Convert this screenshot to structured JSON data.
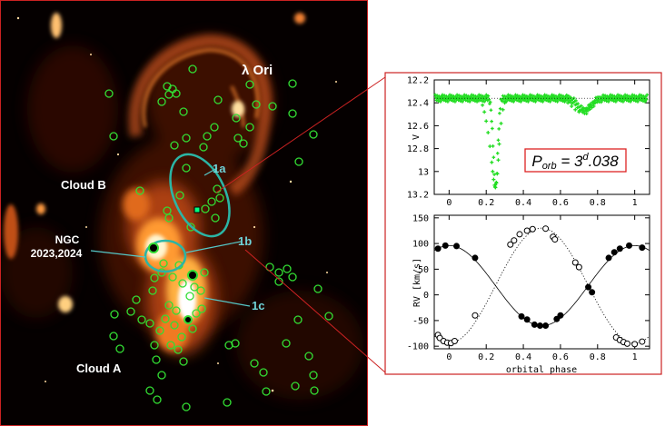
{
  "sky_labels": {
    "lambda_ori": "λ Ori",
    "cloud_b": "Cloud B",
    "cloud_a": "Cloud A",
    "ngc_line1": "NGC",
    "ngc_line2": "2023,2024",
    "sub_1a": "1a",
    "sub_1b": "1b",
    "sub_1c": "1c"
  },
  "colors": {
    "sky_bg": "#000000",
    "nebula": "#e87820",
    "star_marker": "#33dd33",
    "region_outline": "#2bb5a5",
    "label_teal": "#6fd3d8",
    "label_white": "#ffffff",
    "connector_red": "#cc2222",
    "lc_points": "#22dd22",
    "orbit_box": "#dd2222"
  },
  "orbit_annotation": "P_orb = 3^d.038",
  "chart_data": [
    {
      "type": "scatter",
      "ylabel": "V",
      "xlabel": "",
      "xlim": [
        -0.08,
        1.08
      ],
      "ylim": [
        13.2,
        12.2
      ],
      "xticks": [
        0,
        0.2,
        0.4,
        0.6,
        0.8,
        1
      ],
      "xtick_labels": [
        "0",
        "0.2",
        "0.4",
        "0.6",
        "0.8",
        "1"
      ],
      "yticks": [
        12.2,
        12.4,
        12.6,
        12.8,
        13,
        13.2
      ],
      "ytick_labels": [
        "12.2",
        "12.4",
        "12.6",
        "12.8",
        "13",
        "13.2"
      ],
      "annotation": "P_orb = 3^d.038",
      "series": [
        {
          "marker": "plus",
          "color": "#22dd22",
          "x": [
            -0.06,
            -0.04,
            -0.02,
            0.0,
            0.02,
            0.04,
            0.06,
            0.08,
            0.1,
            0.12,
            0.14,
            0.16,
            0.18,
            0.19,
            0.2,
            0.21,
            0.22,
            0.23,
            0.235,
            0.24,
            0.245,
            0.25,
            0.255,
            0.26,
            0.265,
            0.27,
            0.28,
            0.29,
            0.3,
            0.32,
            0.34,
            0.36,
            0.38,
            0.4,
            0.42,
            0.44,
            0.46,
            0.48,
            0.5,
            0.52,
            0.54,
            0.56,
            0.58,
            0.6,
            0.62,
            0.64,
            0.66,
            0.68,
            0.7,
            0.72,
            0.74,
            0.76,
            0.78,
            0.8,
            0.82,
            0.84,
            0.86,
            0.88,
            0.9,
            0.92,
            0.94,
            0.96,
            0.98,
            1.0,
            1.02,
            1.04,
            1.06
          ],
          "y": [
            12.36,
            12.35,
            12.37,
            12.36,
            12.35,
            12.36,
            12.37,
            12.36,
            12.35,
            12.36,
            12.37,
            12.38,
            12.42,
            12.48,
            12.56,
            12.66,
            12.78,
            12.92,
            13.0,
            13.07,
            13.12,
            13.14,
            13.1,
            13.02,
            12.9,
            12.76,
            12.58,
            12.46,
            12.4,
            12.37,
            12.36,
            12.35,
            12.36,
            12.37,
            12.35,
            12.36,
            12.36,
            12.35,
            12.37,
            12.36,
            12.36,
            12.35,
            12.36,
            12.37,
            12.38,
            12.4,
            12.43,
            12.46,
            12.48,
            12.47,
            12.45,
            12.42,
            12.4,
            12.38,
            12.37,
            12.36,
            12.35,
            12.36,
            12.37,
            12.36,
            12.35,
            12.36,
            12.37,
            12.36,
            12.35,
            12.36,
            12.37
          ]
        }
      ]
    },
    {
      "type": "scatter",
      "xlabel": "orbital phase",
      "ylabel": "RV [km/s]",
      "xlim": [
        -0.08,
        1.08
      ],
      "ylim": [
        -105,
        155
      ],
      "xticks": [
        0,
        0.2,
        0.4,
        0.6,
        0.8,
        1
      ],
      "xtick_labels": [
        "0",
        "0.2",
        "0.4",
        "0.6",
        "0.8",
        "1"
      ],
      "yticks": [
        -100,
        -50,
        0,
        50,
        100,
        150
      ],
      "ytick_labels": [
        "-100",
        "-50",
        "0",
        "50",
        "100",
        "150"
      ],
      "series": [
        {
          "marker": "filled-circle",
          "curve": "solid",
          "x": [
            -0.06,
            -0.02,
            0.04,
            0.14,
            0.39,
            0.42,
            0.46,
            0.49,
            0.52,
            0.58,
            0.6,
            0.75,
            0.77,
            0.86,
            0.89,
            0.92,
            0.97,
            1.04
          ],
          "y": [
            90,
            96,
            95,
            72,
            -42,
            -48,
            -58,
            -60,
            -60,
            -47,
            -40,
            15,
            5,
            72,
            83,
            90,
            96,
            92
          ]
        },
        {
          "marker": "open-circle",
          "curve": "dotted",
          "x": [
            -0.06,
            -0.05,
            -0.03,
            -0.01,
            0.01,
            0.03,
            0.14,
            0.33,
            0.35,
            0.38,
            0.42,
            0.45,
            0.52,
            0.56,
            0.57,
            0.68,
            0.7,
            0.9,
            0.92,
            0.94,
            0.96,
            1.0,
            1.04
          ],
          "y": [
            -78,
            -84,
            -90,
            -93,
            -94,
            -90,
            -40,
            98,
            106,
            118,
            125,
            128,
            129,
            113,
            108,
            63,
            54,
            -83,
            -88,
            -92,
            -95,
            -96,
            -91
          ]
        }
      ]
    }
  ]
}
